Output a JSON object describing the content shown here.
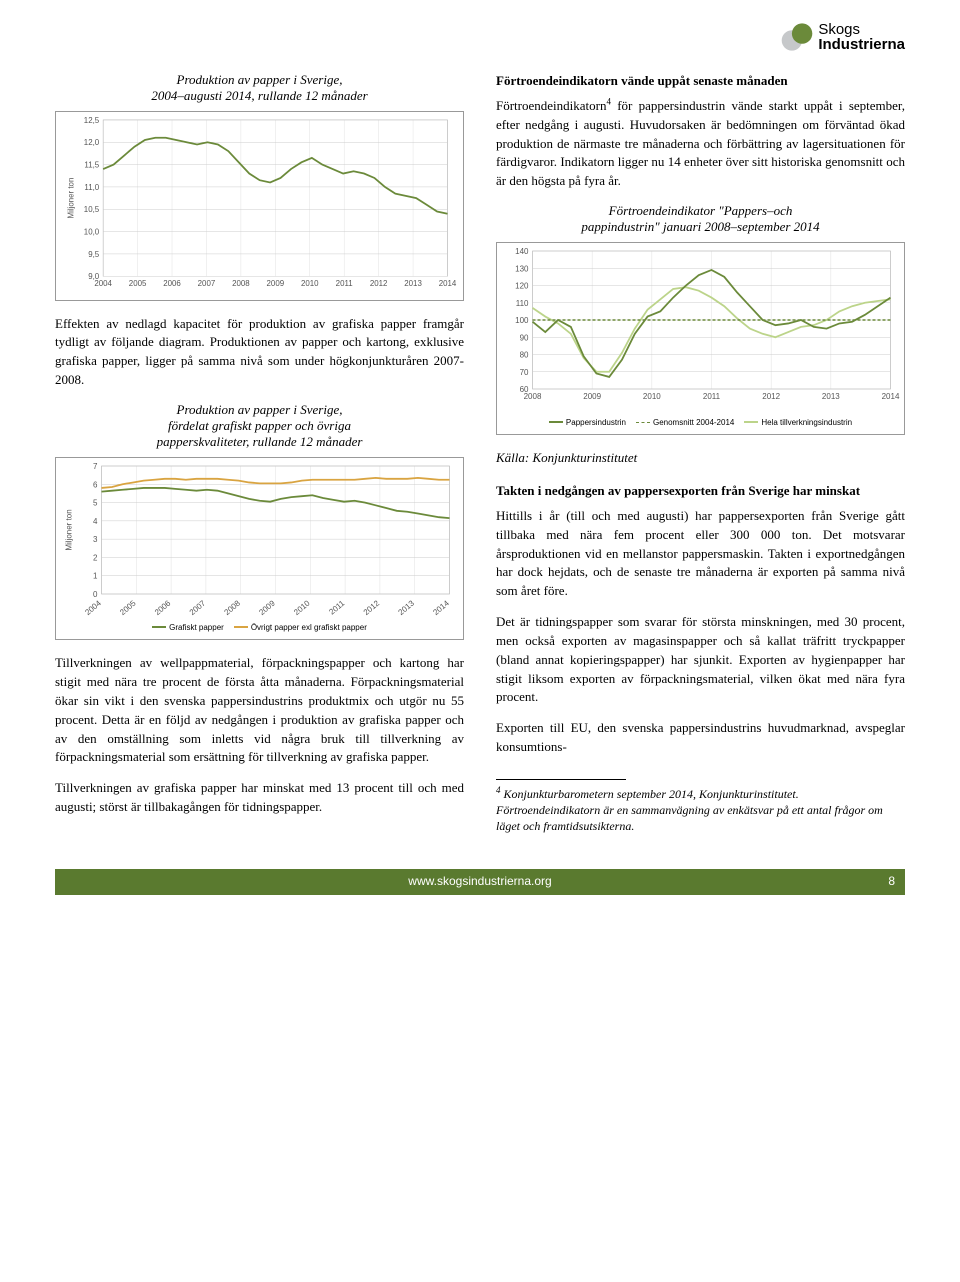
{
  "logo": {
    "brand_top": "Skogs",
    "brand_bottom": "Industrierna"
  },
  "chart1": {
    "type": "line",
    "title": "Produktion av papper i Sverige,\n2004–augusti 2014, rullande 12 månader",
    "y_title": "Miljoner ton",
    "ylim": [
      9.0,
      12.5
    ],
    "ytick_step": 0.5,
    "yticks": [
      "12,5",
      "12,0",
      "11,5",
      "11,0",
      "10,5",
      "10,0",
      "9,5",
      "9,0"
    ],
    "x_years": [
      "2004",
      "2005",
      "2006",
      "2007",
      "2008",
      "2009",
      "2010",
      "2011",
      "2012",
      "2013",
      "2014"
    ],
    "series": [
      11.4,
      11.5,
      11.7,
      11.9,
      12.05,
      12.1,
      12.1,
      12.05,
      12.0,
      11.95,
      12.0,
      11.95,
      11.8,
      11.55,
      11.3,
      11.15,
      11.1,
      11.2,
      11.4,
      11.55,
      11.65,
      11.5,
      11.4,
      11.3,
      11.35,
      11.3,
      11.2,
      11.0,
      10.85,
      10.8,
      10.75,
      10.6,
      10.45,
      10.4
    ],
    "line_color": "#6b8a3a",
    "grid_color": "#cccccc",
    "bg": "#ffffff"
  },
  "para1": "Effekten av nedlagd kapacitet för produktion av grafiska papper framgår tydligt av följande diagram. Produktionen av papper och kartong, exklusive grafiska papper, ligger på samma nivå som under högkonjunkturåren 2007-2008.",
  "chart2": {
    "type": "line",
    "title": "Produktion av papper i Sverige,\nfördelat grafiskt papper och övriga\npapperskvaliteter, rullande 12 månader",
    "y_title": "Miljoner ton",
    "ylim": [
      0,
      7
    ],
    "ytick_step": 1,
    "yticks": [
      "7",
      "6",
      "5",
      "4",
      "3",
      "2",
      "1",
      "0"
    ],
    "x_years": [
      "2004",
      "2005",
      "2006",
      "2007",
      "2008",
      "2009",
      "2010",
      "2011",
      "2012",
      "2013",
      "2014"
    ],
    "series_a_label": "Grafiskt papper",
    "series_b_label": "Övrigt papper exl grafiskt papper",
    "series_a": [
      5.6,
      5.65,
      5.7,
      5.75,
      5.8,
      5.8,
      5.8,
      5.75,
      5.7,
      5.65,
      5.7,
      5.65,
      5.5,
      5.35,
      5.2,
      5.1,
      5.05,
      5.2,
      5.3,
      5.35,
      5.4,
      5.25,
      5.15,
      5.05,
      5.1,
      5.0,
      4.85,
      4.7,
      4.55,
      4.5,
      4.4,
      4.3,
      4.2,
      4.15
    ],
    "series_b": [
      5.8,
      5.85,
      6.0,
      6.1,
      6.2,
      6.25,
      6.3,
      6.3,
      6.25,
      6.3,
      6.3,
      6.3,
      6.25,
      6.2,
      6.1,
      6.05,
      6.05,
      6.05,
      6.1,
      6.2,
      6.25,
      6.25,
      6.25,
      6.25,
      6.25,
      6.3,
      6.35,
      6.3,
      6.3,
      6.3,
      6.35,
      6.3,
      6.25,
      6.25
    ],
    "color_a": "#6b8a3a",
    "color_b": "#d9a441",
    "grid_color": "#cccccc",
    "bg": "#ffffff"
  },
  "para2": "Tillverkningen av wellpappmaterial, förpackningspapper och kartong har stigit med nära tre procent de första åtta månaderna. Förpackningsmaterial ökar sin vikt i den svenska pappersindustrins produktmix och utgör nu 55 procent. Detta är en följd av nedgången i produktion av grafiska papper och av den omställning som inletts vid några bruk till tillverkning av förpackningsmaterial som ersättning för tillverkning av grafiska papper.",
  "para3": "Tillverkningen av grafiska papper har minskat med 13 procent till och med augusti; störst är tillbakagången för tidningspapper.",
  "head1": "Förtroendeindikatorn vände uppåt senaste månaden",
  "para4": "Förtroendeindikatorn",
  "para4_sup": "4",
  "para4_cont": " för pappersindustrin vände starkt uppåt i september, efter nedgång i augusti. Huvudorsaken är bedömningen om förväntad ökad produktion de närmaste tre månaderna och förbättring av lagersituationen för färdigvaror. Indikatorn ligger nu 14 enheter över sitt historiska genomsnitt och är den högsta på fyra år.",
  "chart3": {
    "type": "line",
    "title": "Förtroendeindikator \"Pappers–och\npappindustrin\" januari 2008–september 2014",
    "ylim": [
      60,
      140
    ],
    "ytick_step": 10,
    "yticks": [
      "140",
      "130",
      "120",
      "110",
      "100",
      "90",
      "80",
      "70",
      "60"
    ],
    "x_years": [
      "2008",
      "2009",
      "2010",
      "2011",
      "2012",
      "2013",
      "2014"
    ],
    "series_a_label": "Pappersindustrin",
    "series_b_label": "Genomsnitt 2004-2014",
    "series_c_label": "Hela tillverkningsindustrin",
    "series_a": [
      99,
      93,
      100,
      96,
      79,
      69,
      67,
      77,
      92,
      102,
      105,
      113,
      120,
      126,
      129,
      125,
      116,
      108,
      100,
      97,
      98,
      100,
      96,
      95,
      98,
      99,
      103,
      108,
      113
    ],
    "series_c": [
      107,
      102,
      98,
      92,
      78,
      70,
      70,
      81,
      95,
      106,
      112,
      118,
      119,
      117,
      113,
      108,
      101,
      95,
      92,
      90,
      93,
      96,
      97,
      100,
      105,
      108,
      110,
      111,
      112
    ],
    "avg_line": 100,
    "color_a": "#6b8a3a",
    "color_b": "#6b8a3a",
    "color_c": "#bcd48a",
    "grid_color": "#cccccc",
    "bg": "#ffffff"
  },
  "source3": "Källa: Konjunkturinstitutet",
  "head2": "Takten i nedgången av pappersexporten från Sverige har minskat",
  "para5": "Hittills i år (till och med augusti) har pappersexporten från Sverige gått tillbaka med nära fem procent eller 300 000 ton. Det motsvarar årsproduktionen vid en mellanstor pappersmaskin. Takten i exportnedgången har dock hejdats, och de senaste tre månaderna är exporten på samma nivå som året före.",
  "para6": "Det är tidningspapper som svarar för största minskningen, med 30 procent, men också exporten av magasinspapper och så kallat träfritt tryckpapper (bland annat kopieringspapper) har sjunkit. Exporten av hygienpapper har stigit liksom exporten av förpackningsmaterial, vilken ökat med nära fyra procent.",
  "para7": "Exporten till EU, den svenska pappersindustrins huvudmarknad, avspeglar konsumtions-",
  "footnote": "Konjunkturbarometern september 2014, Konjunkturinstitutet. Förtroendeindikatorn är en sammanvägning av enkätsvar på ett antal frågor om läget och framtidsutsikterna.",
  "footnote_num": "4",
  "footer_url": "www.skogsindustrierna.org",
  "page_number": "8"
}
